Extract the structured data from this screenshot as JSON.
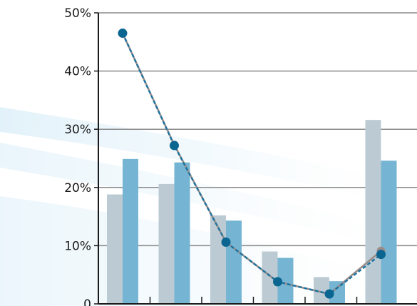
{
  "chart_data": {
    "type": "bar",
    "categories": [
      "",
      "",
      "",
      "",
      "",
      ""
    ],
    "series": [
      {
        "values": [
          18.8,
          20.6,
          15.2,
          9.0,
          4.6,
          31.6
        ]
      },
      {
        "values": [
          24.9,
          24.3,
          14.3,
          7.9,
          3.9,
          24.6
        ]
      }
    ],
    "line_series": [
      {
        "values": [
          46.5,
          27.3,
          10.6,
          3.8,
          1.7,
          9.1
        ]
      },
      {
        "values": [
          46.5,
          27.2,
          10.6,
          3.8,
          1.7,
          8.5
        ]
      }
    ],
    "yticks": [
      "0",
      "10%",
      "20%",
      "30%",
      "40%",
      "50%"
    ],
    "ylim": [
      0,
      50
    ],
    "grid": true,
    "colors": {
      "bar_a": "#bccbd3",
      "bar_b": "#75b5d3",
      "line_a": "#9a8c88",
      "line_b": "#1f74a0",
      "marker": "#0a6590",
      "grid": "#8a8a8a",
      "axis": "#1a1a1a"
    }
  }
}
